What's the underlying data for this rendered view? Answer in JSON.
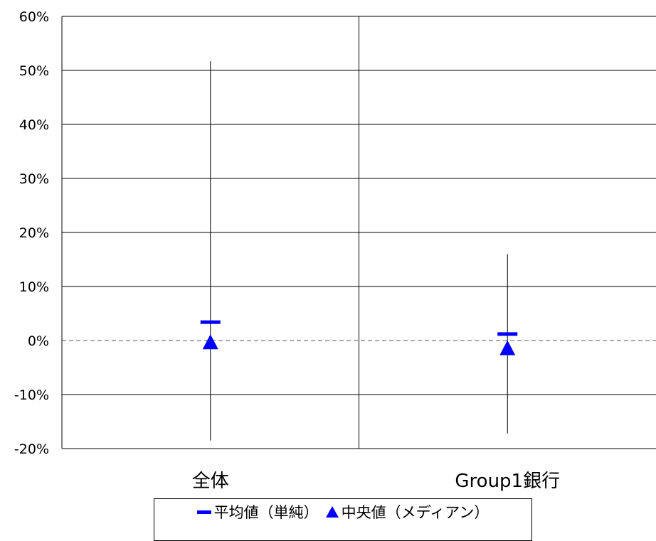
{
  "chart_data": {
    "type": "scatter",
    "categories": [
      "全体",
      "Group1銀行"
    ],
    "yticks": [
      "60%",
      "50%",
      "40%",
      "30%",
      "20%",
      "10%",
      "0%",
      "-10%",
      "-20%"
    ],
    "ylim": [
      -20,
      60
    ],
    "grid": true,
    "legend_position": "bottom",
    "series": [
      {
        "name": "平均値（単純）",
        "values": [
          3.4,
          1.2
        ],
        "color": "#0000ff",
        "marker": "dash"
      },
      {
        "name": "中央値（メディアン）",
        "values": [
          -0.3,
          -1.4
        ],
        "color": "#0000ff",
        "marker": "triangle"
      }
    ],
    "range": [
      {
        "category": "全体",
        "min": -18.5,
        "max": 51.7
      },
      {
        "category": "Group1銀行",
        "min": -17.2,
        "max": 16.0
      }
    ]
  }
}
